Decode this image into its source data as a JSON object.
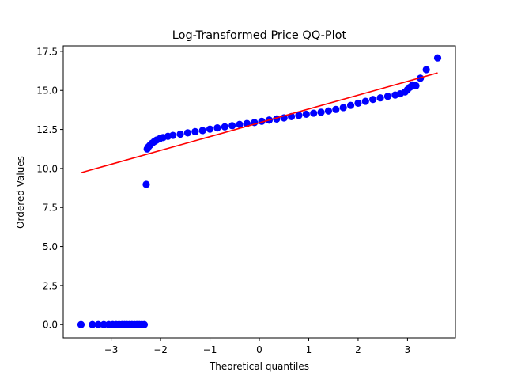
{
  "chart_data": {
    "type": "scatter",
    "title": "Log-Transformed Price QQ-Plot",
    "xlabel": "Theoretical quantiles",
    "ylabel": "Ordered Values",
    "xlim": [
      -3.97,
      3.97
    ],
    "ylim": [
      -0.85,
      17.85
    ],
    "xticks": [
      -3,
      -2,
      -1,
      0,
      1,
      2,
      3
    ],
    "xtick_labels": [
      "−3",
      "−2",
      "−1",
      "0",
      "1",
      "2",
      "3"
    ],
    "yticks": [
      0.0,
      2.5,
      5.0,
      7.5,
      10.0,
      12.5,
      15.0,
      17.5
    ],
    "ytick_labels": [
      "0.0",
      "2.5",
      "5.0",
      "7.5",
      "10.0",
      "12.5",
      "15.0",
      "17.5"
    ],
    "grid": false,
    "series": [
      {
        "kind": "points",
        "color": "#0000ff",
        "points": [
          [
            -3.61,
            0.0
          ],
          [
            -3.38,
            0.0
          ],
          [
            -3.26,
            0.0
          ],
          [
            -3.15,
            0.0
          ],
          [
            -3.05,
            0.0
          ],
          [
            -2.97,
            0.0
          ],
          [
            -2.9,
            0.0
          ],
          [
            -2.84,
            0.0
          ],
          [
            -2.78,
            0.0
          ],
          [
            -2.73,
            0.0
          ],
          [
            -2.68,
            0.0
          ],
          [
            -2.63,
            0.0
          ],
          [
            -2.58,
            0.0
          ],
          [
            -2.53,
            0.0
          ],
          [
            -2.48,
            0.0
          ],
          [
            -2.43,
            0.0
          ],
          [
            -2.38,
            0.0
          ],
          [
            -2.33,
            0.0
          ],
          [
            -2.29,
            8.98
          ],
          [
            -2.27,
            11.25
          ],
          [
            -2.24,
            11.4
          ],
          [
            -2.21,
            11.5
          ],
          [
            -2.17,
            11.62
          ],
          [
            -2.13,
            11.72
          ],
          [
            -2.08,
            11.82
          ],
          [
            -2.02,
            11.9
          ],
          [
            -1.95,
            11.98
          ],
          [
            -1.85,
            12.06
          ],
          [
            -1.75,
            12.12
          ],
          [
            -1.6,
            12.2
          ],
          [
            -1.45,
            12.28
          ],
          [
            -1.3,
            12.36
          ],
          [
            -1.15,
            12.43
          ],
          [
            -1.0,
            12.52
          ],
          [
            -0.85,
            12.6
          ],
          [
            -0.7,
            12.67
          ],
          [
            -0.55,
            12.74
          ],
          [
            -0.4,
            12.82
          ],
          [
            -0.25,
            12.88
          ],
          [
            -0.1,
            12.94
          ],
          [
            0.05,
            13.02
          ],
          [
            0.2,
            13.1
          ],
          [
            0.35,
            13.17
          ],
          [
            0.5,
            13.24
          ],
          [
            0.65,
            13.32
          ],
          [
            0.8,
            13.4
          ],
          [
            0.95,
            13.47
          ],
          [
            1.1,
            13.54
          ],
          [
            1.25,
            13.6
          ],
          [
            1.4,
            13.68
          ],
          [
            1.55,
            13.78
          ],
          [
            1.7,
            13.9
          ],
          [
            1.85,
            14.04
          ],
          [
            2.0,
            14.18
          ],
          [
            2.15,
            14.3
          ],
          [
            2.3,
            14.42
          ],
          [
            2.45,
            14.52
          ],
          [
            2.6,
            14.62
          ],
          [
            2.75,
            14.7
          ],
          [
            2.85,
            14.78
          ],
          [
            2.95,
            14.9
          ],
          [
            3.0,
            15.05
          ],
          [
            3.05,
            15.2
          ],
          [
            3.1,
            15.35
          ],
          [
            3.17,
            15.3
          ],
          [
            3.26,
            15.78
          ],
          [
            3.38,
            16.33
          ],
          [
            3.61,
            17.08
          ]
        ]
      },
      {
        "kind": "fit-line",
        "color": "#ff0000",
        "x": [
          -3.61,
          3.61
        ],
        "y": [
          9.73,
          16.12
        ]
      }
    ]
  }
}
